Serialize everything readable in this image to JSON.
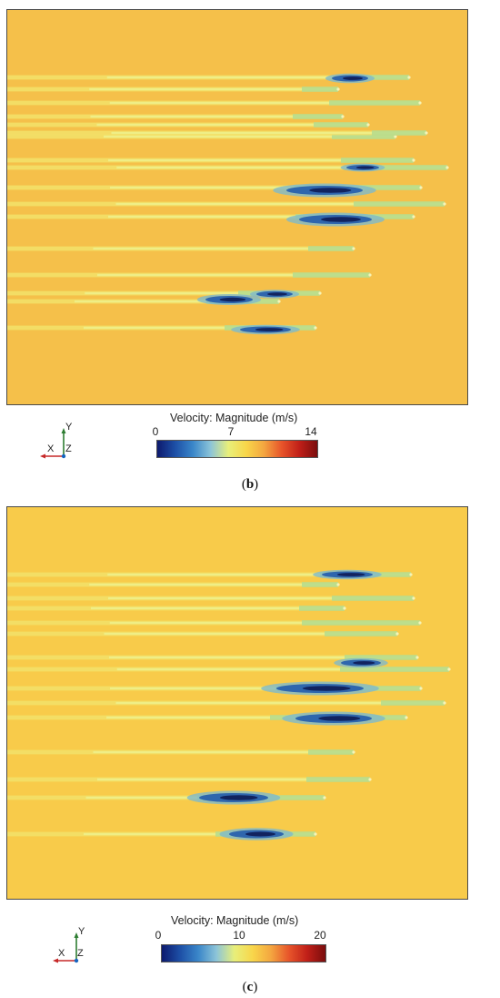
{
  "panels": [
    {
      "id": "b",
      "caption_open": "(",
      "caption_letter": "b",
      "caption_close": ")",
      "legend_title": "Velocity: Magnitude (m/s)",
      "ticks": [
        "0",
        "7",
        "14"
      ],
      "background_color": "#f5c04a",
      "axis_labels": {
        "x": "X",
        "y": "Y",
        "z": "Z"
      },
      "triad_icon": "xyz-axis-triad-icon",
      "colormap": [
        "#0d1a6e",
        "#1d4fa6",
        "#3a86c9",
        "#8cc4d8",
        "#e8ef7a",
        "#f8d64a",
        "#f4a640",
        "#e7542a",
        "#c01f18",
        "#7a0d0d"
      ]
    },
    {
      "id": "c",
      "caption_open": "(",
      "caption_letter": "c",
      "caption_close": ")",
      "legend_title": "Velocity: Magnitude (m/s)",
      "ticks": [
        "0",
        "10",
        "20"
      ],
      "background_color": "#f8cb4a",
      "axis_labels": {
        "x": "X",
        "y": "Y",
        "z": "Z"
      },
      "triad_icon": "xyz-axis-triad-icon",
      "colormap": [
        "#0d1a6e",
        "#1d4fa6",
        "#3a86c9",
        "#8cc4d8",
        "#e8ef7a",
        "#f8d64a",
        "#f4a640",
        "#e7542a",
        "#c01f18",
        "#7a0d0d"
      ]
    }
  ]
}
